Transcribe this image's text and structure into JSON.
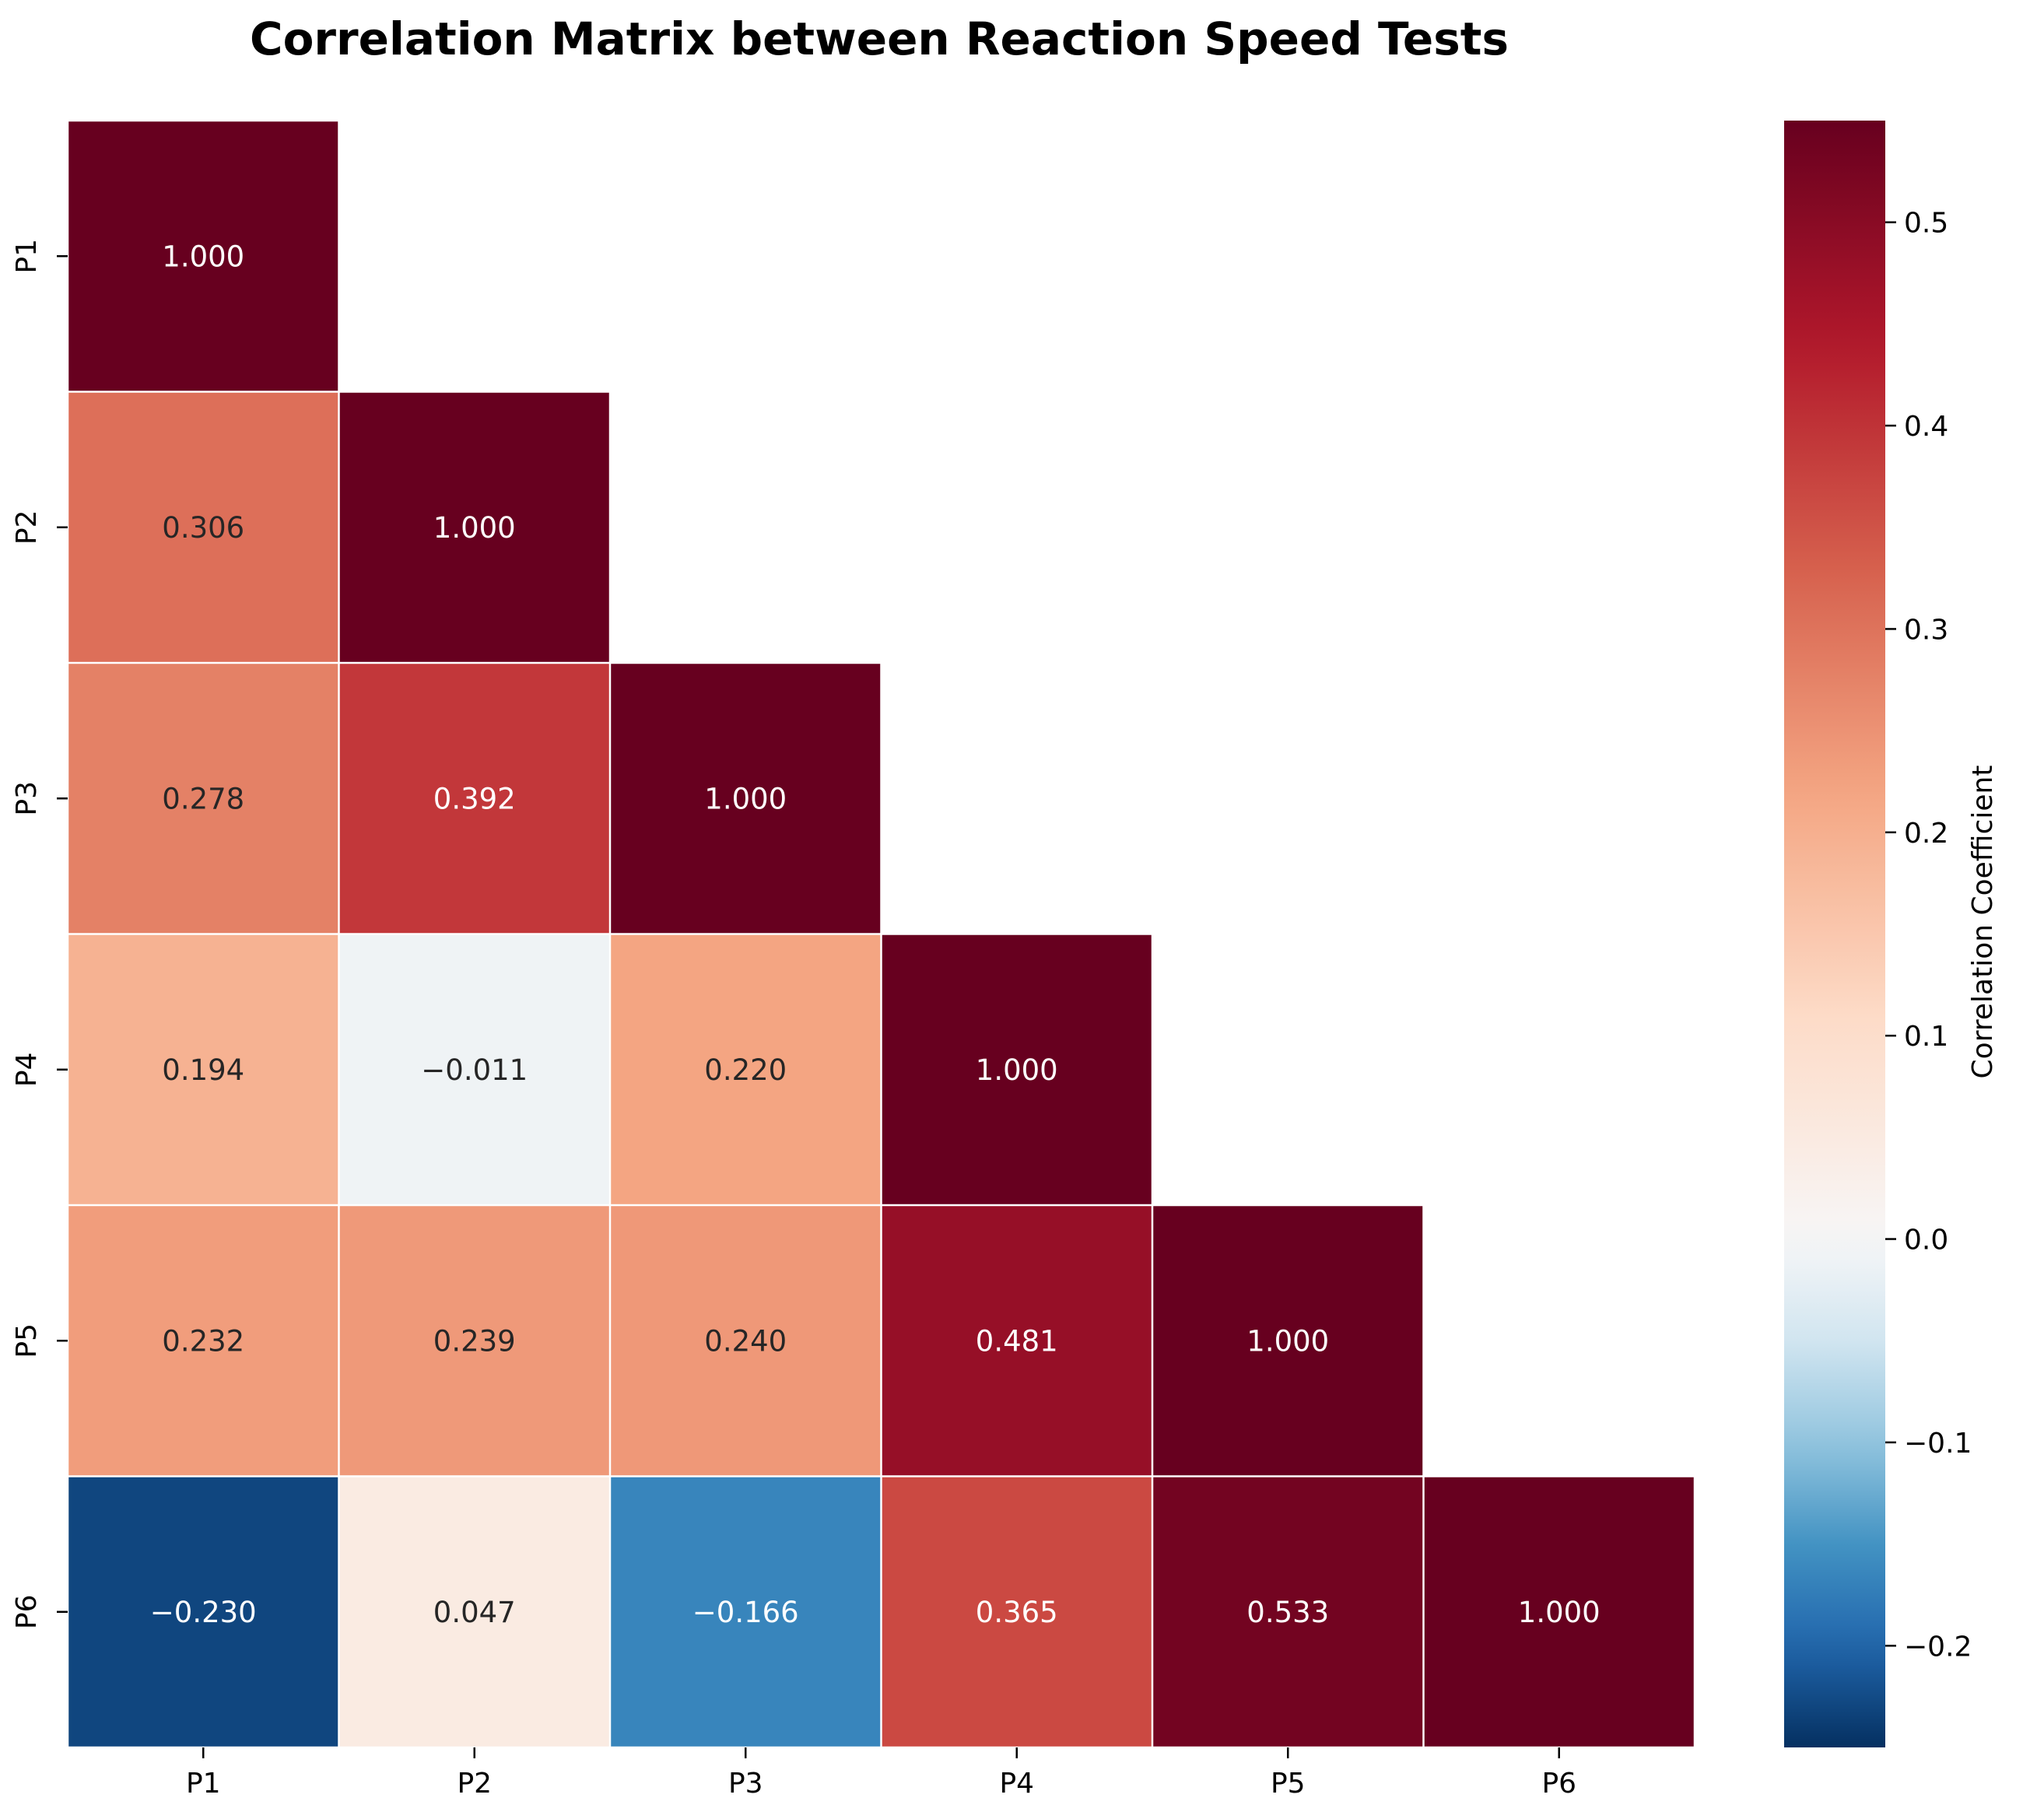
{
  "chart_data": {
    "type": "heatmap",
    "title": "Correlation Matrix between Reaction Speed Tests",
    "row_labels": [
      "P1",
      "P2",
      "P3",
      "P4",
      "P5",
      "P6"
    ],
    "col_labels": [
      "P1",
      "P2",
      "P3",
      "P4",
      "P5",
      "P6"
    ],
    "mask": "upper-triangle",
    "values": [
      [
        1.0,
        null,
        null,
        null,
        null,
        null
      ],
      [
        0.306,
        1.0,
        null,
        null,
        null,
        null
      ],
      [
        0.278,
        0.392,
        1.0,
        null,
        null,
        null
      ],
      [
        0.194,
        -0.011,
        0.22,
        1.0,
        null,
        null
      ],
      [
        0.232,
        0.239,
        0.24,
        0.481,
        1.0,
        null
      ],
      [
        -0.23,
        0.047,
        -0.166,
        0.365,
        0.533,
        1.0
      ]
    ],
    "cell_labels": [
      [
        "1.000",
        "",
        "",
        "",
        "",
        ""
      ],
      [
        "0.306",
        "1.000",
        "",
        "",
        "",
        ""
      ],
      [
        "0.278",
        "0.392",
        "1.000",
        "",
        "",
        ""
      ],
      [
        "0.194",
        "−0.011",
        "0.220",
        "1.000",
        "",
        ""
      ],
      [
        "0.232",
        "0.239",
        "0.240",
        "0.481",
        "1.000",
        ""
      ],
      [
        "−0.230",
        "0.047",
        "−0.166",
        "0.365",
        "0.533",
        "1.000"
      ]
    ],
    "colormap": "RdBu_r",
    "color_range": [
      -0.25,
      0.55
    ],
    "colorbar": {
      "label": "Correlation Coefficient",
      "ticks": [
        -0.2,
        -0.1,
        0.0,
        0.1,
        0.2,
        0.3,
        0.4,
        0.5
      ],
      "tick_labels": [
        "−0.2",
        "−0.1",
        "0.0",
        "0.1",
        "0.2",
        "0.3",
        "0.4",
        "0.5"
      ]
    },
    "grid": false
  }
}
